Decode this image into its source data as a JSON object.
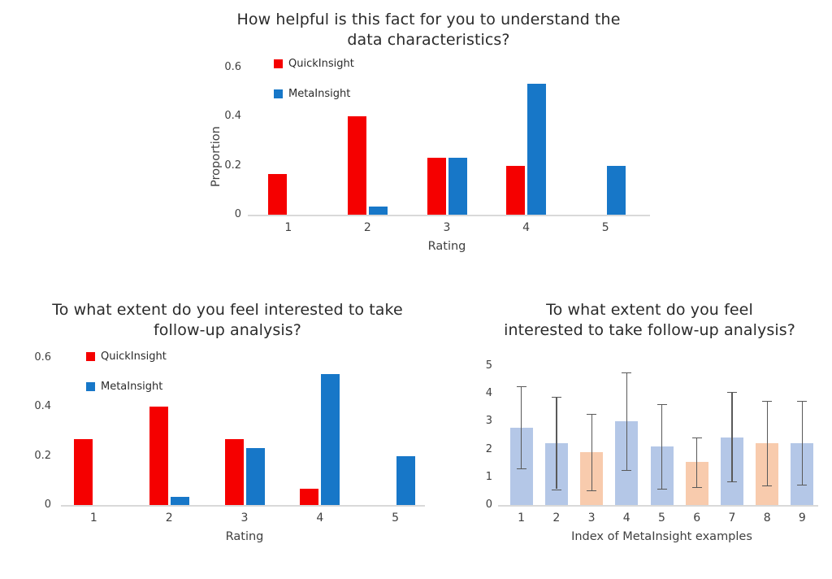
{
  "style": {
    "background": "#ffffff",
    "axis_color": "#d9d9d9",
    "text_color": "#404040",
    "title_color": "#2b2b2b",
    "quickinsight_red": "#f50000",
    "metainsight_blue": "#1777c8",
    "light_blue": "#b4c7e7",
    "light_orange": "#f8cbad",
    "error_bar_gray": "#595959"
  },
  "chart_data": [
    {
      "id": "helpfulness-by-rating",
      "type": "bar",
      "title": "How helpful is this fact for you to understand the data characteristics?",
      "title_lines": [
        "How helpful is this fact for you to understand the",
        "data characteristics?"
      ],
      "xlabel": "Rating",
      "ylabel": "Proportion",
      "categories": [
        "1",
        "2",
        "3",
        "4",
        "5"
      ],
      "series": [
        {
          "name": "QuickInsight",
          "color": "#f50000",
          "values": [
            0.167,
            0.4,
            0.233,
            0.2,
            0
          ]
        },
        {
          "name": "MetaInsight",
          "color": "#1777c8",
          "values": [
            0,
            0.033,
            0.233,
            0.533,
            0.2
          ]
        }
      ],
      "ylim": [
        0,
        0.6
      ],
      "yticks": [
        {
          "v": 0,
          "label": "0"
        },
        {
          "v": 0.2,
          "label": "0.2"
        },
        {
          "v": 0.4,
          "label": "0.4"
        },
        {
          "v": 0.6,
          "label": "0.6"
        }
      ],
      "legend_position": "top-left",
      "grid": false
    },
    {
      "id": "follow-up-interest-by-rating",
      "type": "bar",
      "title": "To what extent do you feel interested to take follow-up analysis?",
      "title_lines": [
        "To what extent do you feel interested to take",
        "follow-up analysis?"
      ],
      "xlabel": "Rating",
      "ylabel": "",
      "categories": [
        "1",
        "2",
        "3",
        "4",
        "5"
      ],
      "series": [
        {
          "name": "QuickInsight",
          "color": "#f50000",
          "values": [
            0.267,
            0.4,
            0.267,
            0.067,
            0
          ]
        },
        {
          "name": "MetaInsight",
          "color": "#1777c8",
          "values": [
            0,
            0.033,
            0.233,
            0.533,
            0.2
          ]
        }
      ],
      "ylim": [
        0,
        0.6
      ],
      "yticks": [
        {
          "v": 0,
          "label": "0"
        },
        {
          "v": 0.2,
          "label": "0.2"
        },
        {
          "v": 0.4,
          "label": "0.4"
        },
        {
          "v": 0.6,
          "label": "0.6"
        }
      ],
      "legend_position": "top-left",
      "grid": false
    },
    {
      "id": "follow-up-interest-by-example",
      "type": "bar_with_error",
      "title": "To what extent do you feel interested to take follow-up analysis?",
      "title_lines": [
        "To what extent do you feel",
        "interested to take follow-up analysis?"
      ],
      "xlabel": "Index of MetaInsight examples",
      "ylabel": "",
      "categories": [
        "1",
        "2",
        "3",
        "4",
        "5",
        "6",
        "7",
        "8",
        "9"
      ],
      "values": [
        2.78,
        2.22,
        1.89,
        3.0,
        2.11,
        1.56,
        2.44,
        2.22,
        2.22
      ],
      "error_upper": [
        4.26,
        3.89,
        3.27,
        4.78,
        3.63,
        2.44,
        4.06,
        3.74,
        3.74
      ],
      "error_lower": [
        1.31,
        0.57,
        0.52,
        1.25,
        0.59,
        0.65,
        0.85,
        0.71,
        0.73
      ],
      "bar_colors": [
        "#b4c7e7",
        "#b4c7e7",
        "#f8cbad",
        "#b4c7e7",
        "#b4c7e7",
        "#f8cbad",
        "#b4c7e7",
        "#f8cbad",
        "#b4c7e7"
      ],
      "error_color": "#595959",
      "ylim": [
        0,
        5
      ],
      "yticks": [
        {
          "v": 0,
          "label": "0"
        },
        {
          "v": 1,
          "label": "1"
        },
        {
          "v": 2,
          "label": "2"
        },
        {
          "v": 3,
          "label": "3"
        },
        {
          "v": 4,
          "label": "4"
        },
        {
          "v": 5,
          "label": "5"
        }
      ],
      "grid": false
    }
  ]
}
